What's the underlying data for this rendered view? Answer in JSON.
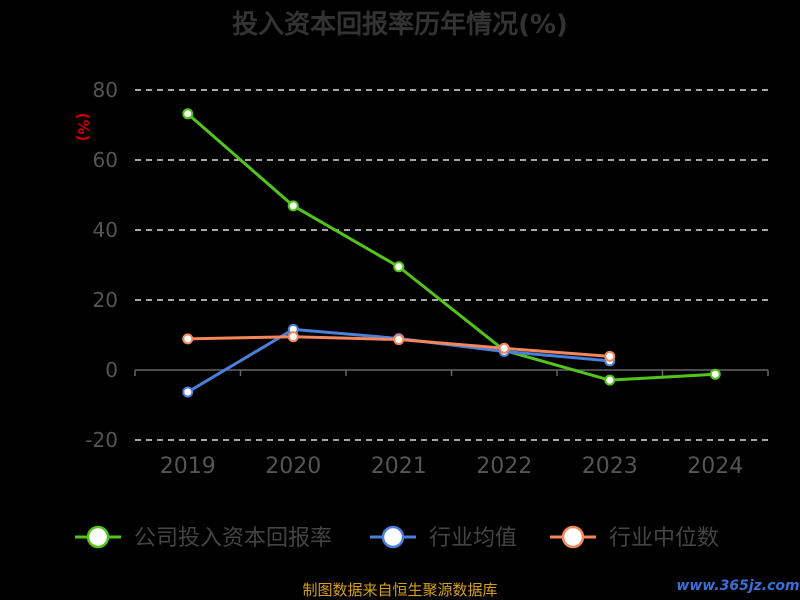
{
  "chart_data": {
    "type": "line",
    "title": "投入资本回报率历年情况(%)",
    "ylabel": "(%)",
    "xlabel": "",
    "categories": [
      "2019",
      "2020",
      "2021",
      "2022",
      "2023",
      "2024"
    ],
    "ylim": [
      -20,
      80
    ],
    "yticks": [
      80,
      60,
      40,
      20,
      0,
      -20
    ],
    "grid": true,
    "legend_position": "bottom",
    "series": [
      {
        "name": "公司投入资本回报率",
        "color": "#52c41a",
        "values": [
          73.2,
          46.9,
          29.5,
          5.6,
          -2.9,
          -1.2
        ]
      },
      {
        "name": "行业均值",
        "color": "#4a7fdc",
        "values": [
          -6.3,
          11.6,
          9.0,
          5.3,
          2.6,
          null
        ]
      },
      {
        "name": "行业中位数",
        "color": "#f4875a",
        "values": [
          8.9,
          9.5,
          8.7,
          6.2,
          3.9,
          null
        ]
      }
    ]
  },
  "source_text": "制图数据来自恒生聚源数据库",
  "watermark_text": "www.365jz.com"
}
